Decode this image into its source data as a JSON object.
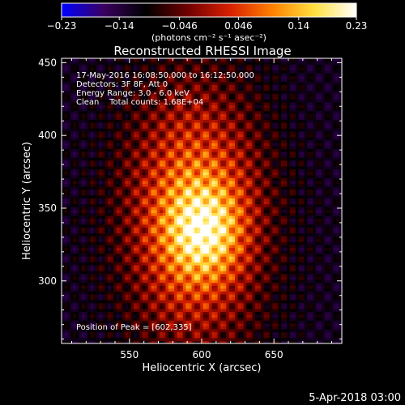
{
  "chart_data": {
    "type": "heatmap",
    "title": "Reconstructed RHESSI Image",
    "xlabel": "Heliocentric X (arcsec)",
    "ylabel": "Heliocentric Y (arcsec)",
    "xlim": [
      503,
      697
    ],
    "ylim": [
      257,
      453
    ],
    "xticks": [
      550,
      600,
      650
    ],
    "yticks": [
      300,
      350,
      400,
      450
    ],
    "colorbar": {
      "min": -0.23,
      "max": 0.23,
      "ticks": [
        {
          "value": -0.23,
          "label": "−0.23"
        },
        {
          "value": -0.14,
          "label": "−0.14"
        },
        {
          "value": -0.046,
          "label": "−0.046"
        },
        {
          "value": 0.046,
          "label": "0.046"
        },
        {
          "value": 0.14,
          "label": "0.14"
        },
        {
          "value": 0.23,
          "label": "0.23"
        }
      ],
      "unit_label": "(photons cm⁻² s⁻¹ asec⁻²)",
      "colors": [
        "#0000ff",
        "#3a0060",
        "#000000",
        "#700000",
        "#d82000",
        "#ff8000",
        "#ffe040",
        "#ffffff"
      ]
    },
    "info_lines": [
      "17-May-2016 16:08:50.000 to 16:12:50.000",
      "Detectors: 3F 8F, Att 0",
      "Energy Range: 3.0 - 6.0 keV",
      "Clean    Total counts: 1.68E+04"
    ],
    "peak_label": "Position of Peak = [602,335]",
    "peak": {
      "x": 602,
      "y": 335
    },
    "source": {
      "x_center": 595,
      "y_center": 345,
      "x_sigma": 33,
      "y_sigma": 62
    }
  },
  "footer": {
    "date": "5-Apr-2018 03:00"
  }
}
